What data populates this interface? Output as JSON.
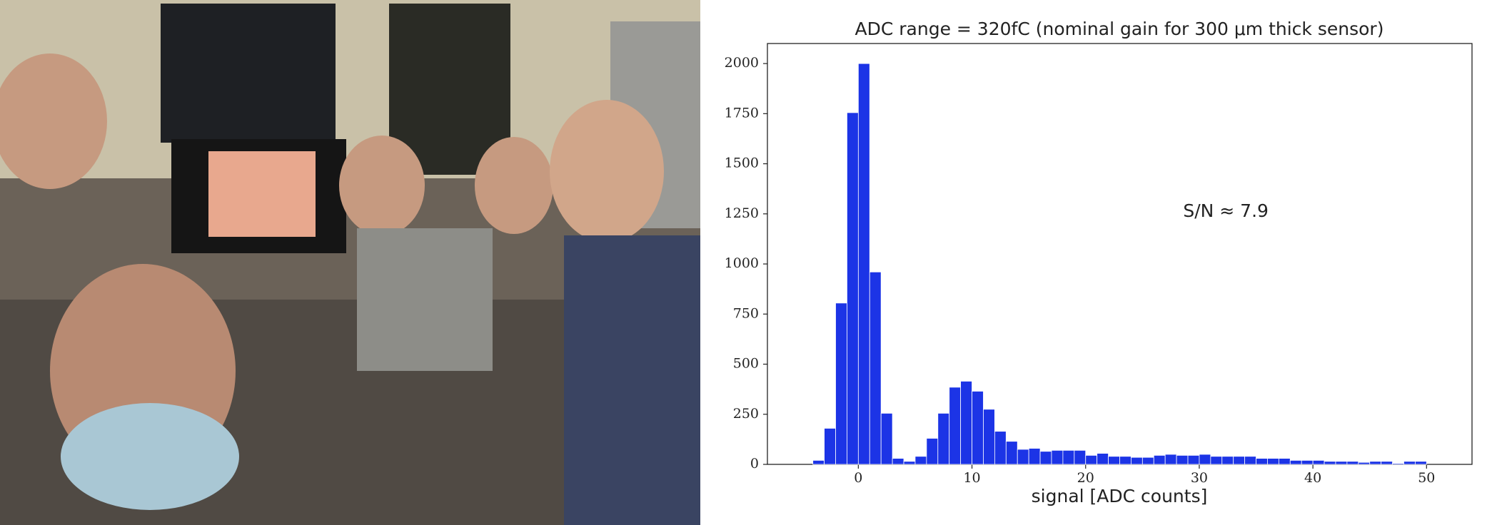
{
  "chart_data": {
    "type": "histogram",
    "title": "ADC range = 320fC (nominal gain for 300 μm thick sensor)",
    "x_label": "signal [ADC counts]",
    "annotation": "S/N ≈ 7.9",
    "bins": [
      -4,
      -3,
      -2,
      -1,
      0,
      1,
      2,
      3,
      4,
      5,
      6,
      7,
      8,
      9,
      10,
      11,
      12,
      13,
      14,
      15,
      16,
      17,
      18,
      19,
      20,
      21,
      22,
      23,
      24,
      25,
      26,
      27,
      28,
      29,
      30,
      31,
      32,
      33,
      34,
      35,
      36,
      37,
      38,
      39,
      40,
      41,
      42,
      43,
      44,
      45,
      46,
      47,
      48,
      49,
      50
    ],
    "values": [
      20,
      180,
      805,
      1755,
      2000,
      960,
      255,
      30,
      15,
      40,
      130,
      255,
      385,
      415,
      365,
      275,
      165,
      115,
      75,
      80,
      65,
      70,
      70,
      70,
      45,
      55,
      40,
      40,
      35,
      35,
      45,
      50,
      45,
      45,
      50,
      40,
      40,
      40,
      40,
      30,
      30,
      30,
      20,
      20,
      20,
      15,
      15,
      15,
      10,
      15,
      15,
      5,
      15,
      15
    ],
    "color": "#1c34e6",
    "xlim": [
      -8,
      54
    ],
    "ylim": [
      0,
      2100
    ],
    "xticks": [
      0,
      10,
      20,
      30,
      40,
      50
    ],
    "yticks": [
      0,
      250,
      500,
      750,
      1000,
      1250,
      1500,
      1750,
      2000
    ]
  }
}
